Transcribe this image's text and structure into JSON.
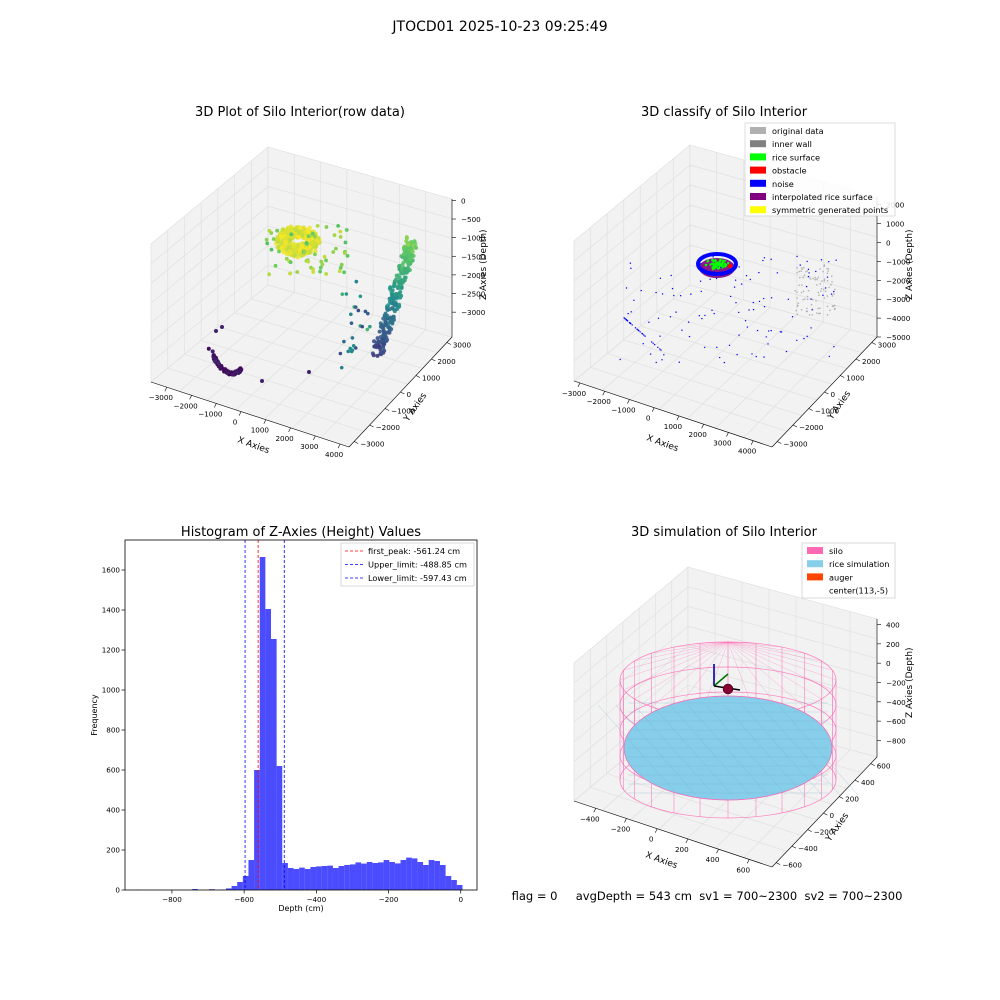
{
  "figure_title": "JTOCD01 2025-10-23 09:25:49",
  "status_text": "flag = 0     avgDepth = 543 cm  sv1 = 700~2300  sv2 = 700~2300",
  "colors": {
    "hist_fill": "#0000ff",
    "hist_alpha": 0.7,
    "first_peak": "#ff0000",
    "limit_line": "#0000ff",
    "pane_fill": "#f2f2f2",
    "pane_grid": "#e0e0e0",
    "silo": "#ff69b4",
    "rice": "#87ceeb",
    "auger": "#ff4500"
  },
  "chart_data": [
    {
      "type": "scatter",
      "subtype": "3d",
      "title": "3D Plot of Silo Interior(row data)",
      "xlabel": "X Axies",
      "ylabel": "Y Axies",
      "zlabel": "Z Axies (Depth)",
      "x_ticks": [
        "−3000",
        "−2000",
        "−1000",
        "0",
        "1000",
        "2000",
        "3000",
        "4000"
      ],
      "y_ticks": [
        "−3000",
        "−2000",
        "−1000",
        "0",
        "1000",
        "2000",
        "3000"
      ],
      "z_ticks": [
        "−3000",
        "−2500",
        "−2000",
        "−1500",
        "−1000",
        "−500",
        "0"
      ],
      "colormap": "viridis (by depth)",
      "grid": true
    },
    {
      "type": "scatter",
      "subtype": "3d",
      "title": "3D classify of Silo Interior",
      "xlabel": "X Axies",
      "ylabel": "Y Axies",
      "zlabel": "Z Axies (Depth)",
      "x_ticks": [
        "−3000",
        "−2000",
        "−1000",
        "0",
        "1000",
        "2000",
        "3000",
        "4000"
      ],
      "y_ticks": [
        "−3000",
        "−2000",
        "−1000",
        "0",
        "1000",
        "2000",
        "3000"
      ],
      "z_ticks": [
        "−5000",
        "−4000",
        "−3000",
        "−2000",
        "−1000",
        "0",
        "1000",
        "2000"
      ],
      "legend": [
        {
          "label": "original data",
          "color": "#b0b0b0"
        },
        {
          "label": "inner wall",
          "color": "#808080"
        },
        {
          "label": "rice surface",
          "color": "#00ff00"
        },
        {
          "label": "obstacle",
          "color": "#ff0000"
        },
        {
          "label": "noise",
          "color": "#0000ff"
        },
        {
          "label": "interpolated rice surface",
          "color": "#800080"
        },
        {
          "label": "symmetric generated points",
          "color": "#ffff00"
        }
      ],
      "legend_position": "top-right",
      "grid": true
    },
    {
      "type": "bar",
      "subtype": "histogram",
      "title": "Histogram of Z-Axies (Height) Values",
      "xlabel": "Depth (cm)",
      "ylabel": "Frequency",
      "xlim": [
        -930,
        45
      ],
      "ylim": [
        0,
        1750
      ],
      "x_ticks": [
        -800,
        -600,
        -400,
        -200,
        0
      ],
      "x_tick_labels": [
        "−800",
        "−600",
        "−400",
        "−200",
        "0"
      ],
      "y_ticks": [
        0,
        200,
        400,
        600,
        800,
        1000,
        1200,
        1400,
        1600
      ],
      "bin_width": 15.6,
      "bin_lefts": [
        -900,
        -884.4,
        -868.8,
        -853.2,
        -837.6,
        -822,
        -806.4,
        -790.8,
        -775.2,
        -759.6,
        -744,
        -728.4,
        -712.8,
        -697.2,
        -681.6,
        -666,
        -650.4,
        -634.8,
        -619.2,
        -603.6,
        -588,
        -572.4,
        -556.8,
        -541.2,
        -525.6,
        -510,
        -494.4,
        -478.8,
        -463.2,
        -447.6,
        -432,
        -416.4,
        -400.8,
        -385.2,
        -369.6,
        -354,
        -338.4,
        -322.8,
        -307.2,
        -291.6,
        -276,
        -260.4,
        -244.8,
        -229.2,
        -213.6,
        -198,
        -182.4,
        -166.8,
        -151.2,
        -135.6,
        -120,
        -104.4,
        -88.8,
        -73.2,
        -57.6,
        -42,
        -26.4,
        -10.8
      ],
      "values": [
        1,
        0,
        0,
        0,
        0,
        0,
        0,
        0,
        0,
        0,
        5,
        0,
        0,
        4,
        0,
        2,
        8,
        20,
        40,
        70,
        150,
        600,
        1665,
        1405,
        1255,
        620,
        135,
        110,
        105,
        112,
        105,
        115,
        118,
        120,
        122,
        110,
        120,
        125,
        128,
        138,
        132,
        140,
        135,
        138,
        150,
        140,
        133,
        150,
        162,
        158,
        140,
        125,
        150,
        145,
        125,
        70,
        50,
        25
      ],
      "lines": [
        {
          "label": "first_peak: -561.24 cm",
          "x": -561.24,
          "color": "#ff0000"
        },
        {
          "label": "Upper_limit: -488.85 cm",
          "x": -488.85,
          "color": "#0000ff"
        },
        {
          "label": "Lower_limit: -597.43 cm",
          "x": -597.43,
          "color": "#0000ff"
        }
      ],
      "legend_position": "upper right"
    },
    {
      "type": "scatter",
      "subtype": "3d-surface",
      "title": "3D simulation of Silo Interior",
      "xlabel": "X Axies",
      "ylabel": "Y Axies",
      "zlabel": "Z Axies (Depth)",
      "x_ticks": [
        "−400",
        "−200",
        "0",
        "200",
        "400",
        "600"
      ],
      "y_ticks": [
        "−600",
        "−400",
        "−200",
        "0",
        "200",
        "400",
        "600"
      ],
      "z_ticks": [
        "−800",
        "−600",
        "−400",
        "−200",
        "0",
        "200",
        "400"
      ],
      "legend": [
        {
          "label": "silo",
          "color": "#ff69b4"
        },
        {
          "label": "rice simulation",
          "color": "#87ceeb"
        },
        {
          "label": "auger",
          "color": "#ff4500"
        },
        {
          "label": "center(113,-5)",
          "color": ""
        }
      ],
      "legend_position": "top-right",
      "grid": true
    }
  ]
}
